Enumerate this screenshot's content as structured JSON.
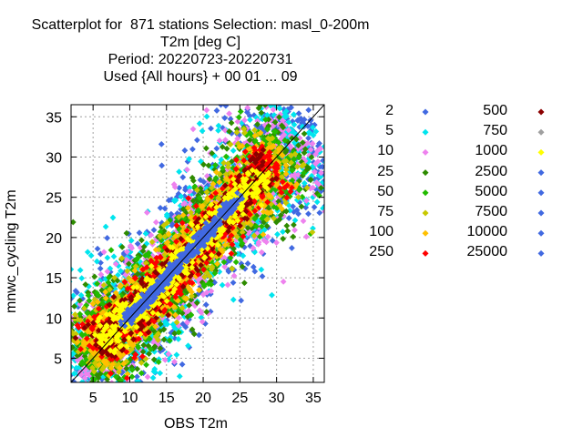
{
  "chart_data": {
    "type": "scatter",
    "title_lines": [
      "Scatterplot for  871 stations Selection: masl_0-200m",
      "T2m [deg C]",
      "Period: 20220723-20220731",
      "Used {All hours} + 00 01 ... 09"
    ],
    "xlabel": "OBS T2m",
    "ylabel": "mnwc_cycling T2m",
    "xlim": [
      2,
      36.5
    ],
    "ylim": [
      2,
      36.5
    ],
    "xticks": [
      5,
      10,
      15,
      20,
      25,
      30,
      35
    ],
    "yticks": [
      5,
      10,
      15,
      20,
      25,
      30,
      35
    ],
    "grid": true,
    "diagonal_line": true,
    "legend": [
      {
        "label": "2",
        "color": "#4169e1"
      },
      {
        "label": "5",
        "color": "#00e5ee"
      },
      {
        "label": "10",
        "color": "#ee82ee"
      },
      {
        "label": "25",
        "color": "#2e8b00"
      },
      {
        "label": "50",
        "color": "#22bb00"
      },
      {
        "label": "75",
        "color": "#c8c800"
      },
      {
        "label": "100",
        "color": "#ffc000"
      },
      {
        "label": "250",
        "color": "#ff0000"
      },
      {
        "label": "500",
        "color": "#8b0000"
      },
      {
        "label": "750",
        "color": "#a0a0a0"
      },
      {
        "label": "1000",
        "color": "#ffff00"
      },
      {
        "label": "2500",
        "color": "#4169e1"
      },
      {
        "label": "5000",
        "color": "#4169e1"
      },
      {
        "label": "7500",
        "color": "#4169e1"
      },
      {
        "label": "10000",
        "color": "#4169e1"
      },
      {
        "label": "25000",
        "color": "#4169e1"
      }
    ],
    "density_bands": [
      {
        "label": "2",
        "color": "#4169e1",
        "width": 3.2
      },
      {
        "label": "5",
        "color": "#00e5ee",
        "width": 3.0
      },
      {
        "label": "10",
        "color": "#ee82ee",
        "width": 2.7
      },
      {
        "label": "25",
        "color": "#2e8b00",
        "width": 2.4
      },
      {
        "label": "50",
        "color": "#22bb00",
        "width": 2.0
      },
      {
        "label": "75",
        "color": "#c8c800",
        "width": 1.75
      },
      {
        "label": "100",
        "color": "#ffc000",
        "width": 1.55
      },
      {
        "label": "250",
        "color": "#ff0000",
        "width": 1.3
      },
      {
        "label": "500",
        "color": "#8b0000",
        "width": 0.95
      },
      {
        "label": "1000",
        "color": "#ffff00",
        "width": 0.8
      },
      {
        "label": "2500",
        "color": "#4169e1",
        "width": 0.65
      }
    ],
    "band_range": [
      7.5,
      26.5
    ],
    "dense_core_range": [
      9.5,
      24.5
    ]
  }
}
